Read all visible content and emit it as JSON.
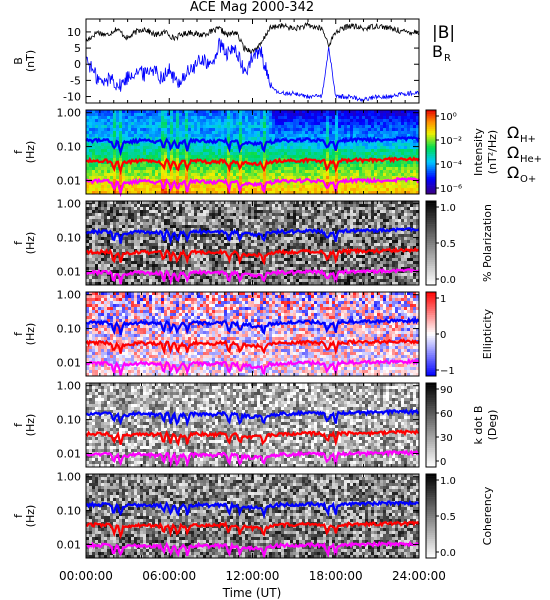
{
  "figure": {
    "title": "ACE Mag 2000-342",
    "time_axis": {
      "label": "Time (UT)",
      "ticks": [
        "00:00:00",
        "06:00:00",
        "12:00:00",
        "18:00:00",
        "24:00:00"
      ],
      "tick_hours": [
        0,
        6,
        12,
        18,
        24
      ],
      "range_hours": [
        0,
        24
      ]
    }
  },
  "chart_data": [
    {
      "type": "line",
      "panel": "field",
      "ylabel_line1": "B",
      "ylabel_line2": "(nT)",
      "ylim": [
        -12,
        14
      ],
      "yticks": [
        -10,
        -5,
        0,
        5,
        10
      ],
      "ytick_labels": [
        "-10",
        "-5",
        "0",
        "5",
        "10"
      ],
      "series": [
        {
          "name": "|B|",
          "color": "#000000",
          "x": [
            0,
            0.8,
            1.5,
            2.2,
            3,
            3.6,
            4.2,
            5,
            5.8,
            6.3,
            6.8,
            7.5,
            8.2,
            9,
            9.6,
            10.2,
            10.8,
            11.4,
            12,
            12.6,
            13.2,
            14,
            15,
            16,
            17,
            17.5,
            18,
            19,
            20,
            21,
            22,
            23,
            24
          ],
          "y": [
            7,
            10,
            9,
            11,
            8,
            10,
            11,
            9,
            10,
            8,
            9,
            10,
            9,
            10,
            11,
            9,
            10,
            5,
            4,
            6,
            11,
            12,
            11,
            12,
            11,
            6,
            10,
            12,
            11,
            12,
            11,
            10,
            10
          ]
        },
        {
          "name": "B_R",
          "color": "#0000ff",
          "x": [
            0,
            0.6,
            1.2,
            1.8,
            2.4,
            3,
            3.6,
            4.2,
            4.8,
            5.4,
            6,
            6.6,
            7.2,
            7.8,
            8.4,
            9,
            9.6,
            10.2,
            10.8,
            11.4,
            12,
            12.6,
            13,
            13.5,
            14,
            15,
            16,
            17,
            17.5,
            18,
            19,
            20,
            21,
            22,
            23,
            24
          ],
          "y": [
            2,
            -3,
            -6,
            -4,
            -7,
            -4,
            -2,
            -3,
            -1,
            -4,
            -2,
            -6,
            -3,
            -1,
            2,
            -1,
            6,
            3,
            5,
            -3,
            2,
            4,
            -2,
            -8,
            -9,
            -9,
            -10,
            -10,
            5,
            -10,
            -10,
            -11,
            -10,
            -10,
            -9,
            -9
          ]
        }
      ]
    },
    {
      "type": "heatmap",
      "panel": "intensity",
      "ylabel_line1": "f",
      "ylabel_line2": "(Hz)",
      "yticks": [
        1.0,
        0.1,
        0.01
      ],
      "ytick_labels": [
        "1.00",
        "0.10",
        "0.01"
      ],
      "ylim": [
        0.004,
        1.2
      ],
      "colorbar": {
        "label_line1": "Intensity",
        "label_line2": "(nT²/Hz)",
        "tick_labels": [
          "10⁰",
          "10⁻²",
          "10⁻⁴",
          "10⁻⁶"
        ],
        "scale": "rainbow"
      },
      "legend": [
        {
          "label": "ΩH+",
          "color": "#0000ff"
        },
        {
          "label": "ΩHe+",
          "color": "#ff0000"
        },
        {
          "label": "ΩO+",
          "color": "#ff00ff"
        }
      ]
    },
    {
      "type": "heatmap",
      "panel": "polarization",
      "ylabel_line1": "f",
      "ylabel_line2": "(Hz)",
      "yticks": [
        1.0,
        0.1,
        0.01
      ],
      "ytick_labels": [
        "1.00",
        "0.10",
        "0.01"
      ],
      "colorbar": {
        "label_line1": "% Polarization",
        "label_line2": "",
        "tick_labels": [
          "1.0",
          "0.5",
          "0.0"
        ],
        "scale": "gray"
      }
    },
    {
      "type": "heatmap",
      "panel": "ellipticity",
      "ylabel_line1": "f",
      "ylabel_line2": "(Hz)",
      "yticks": [
        1.0,
        0.1,
        0.01
      ],
      "ytick_labels": [
        "1.00",
        "0.10",
        "0.01"
      ],
      "colorbar": {
        "label_line1": "Ellipticity",
        "label_line2": "",
        "tick_labels": [
          "1",
          "0",
          "−1"
        ],
        "scale": "bwr"
      }
    },
    {
      "type": "heatmap",
      "panel": "kdotb",
      "ylabel_line1": "f",
      "ylabel_line2": "(Hz)",
      "yticks": [
        1.0,
        0.1,
        0.01
      ],
      "ytick_labels": [
        "1.00",
        "0.10",
        "0.01"
      ],
      "colorbar": {
        "label_line1": "k dot B",
        "label_line2": "(Deg)",
        "tick_labels": [
          "90",
          "60",
          "30",
          "0"
        ],
        "scale": "gray"
      }
    },
    {
      "type": "heatmap",
      "panel": "coherency",
      "ylabel_line1": "f",
      "ylabel_line2": "(Hz)",
      "yticks": [
        1.0,
        0.1,
        0.01
      ],
      "ytick_labels": [
        "1.00",
        "0.10",
        "0.01"
      ],
      "colorbar": {
        "label_line1": "Coherency",
        "label_line2": "",
        "tick_labels": [
          "1.0",
          "0.5",
          "0.0"
        ],
        "scale": "gray"
      }
    }
  ],
  "gyrofrequency_lines": {
    "x_hours": [
      0,
      1.5,
      2.5,
      3,
      4,
      5,
      6,
      6.5,
      7,
      8,
      9,
      10,
      11,
      12,
      13,
      14,
      15,
      16,
      17,
      17.5,
      18,
      19,
      20,
      21,
      22,
      23,
      24
    ],
    "H+": [
      0.15,
      0.15,
      0.13,
      0.14,
      0.15,
      0.14,
      0.15,
      0.13,
      0.14,
      0.15,
      0.14,
      0.15,
      0.14,
      0.12,
      0.13,
      0.15,
      0.15,
      0.16,
      0.15,
      0.14,
      0.15,
      0.16,
      0.16,
      0.16,
      0.17,
      0.17,
      0.17
    ],
    "He+": [
      0.038,
      0.038,
      0.033,
      0.035,
      0.038,
      0.035,
      0.038,
      0.033,
      0.035,
      0.038,
      0.035,
      0.038,
      0.035,
      0.03,
      0.033,
      0.038,
      0.038,
      0.04,
      0.038,
      0.035,
      0.038,
      0.04,
      0.04,
      0.04,
      0.042,
      0.042,
      0.042
    ],
    "O+": [
      0.0095,
      0.0095,
      0.0083,
      0.0088,
      0.0095,
      0.0088,
      0.0095,
      0.0083,
      0.0088,
      0.0095,
      0.0088,
      0.0095,
      0.0088,
      0.0075,
      0.0083,
      0.0095,
      0.0095,
      0.01,
      0.0095,
      0.0088,
      0.0095,
      0.01,
      0.01,
      0.01,
      0.0105,
      0.0105,
      0.0105
    ],
    "dips_hours": [
      2.0,
      2.5,
      5.6,
      6.1,
      6.6,
      7.3,
      10.3,
      11.1,
      12.8,
      17.4,
      18.0
    ]
  },
  "colors": {
    "h_plus": "#0000ff",
    "he_plus": "#ff0000",
    "o_plus": "#ff00ff",
    "b_mag": "#000000",
    "b_r": "#0000ff"
  }
}
